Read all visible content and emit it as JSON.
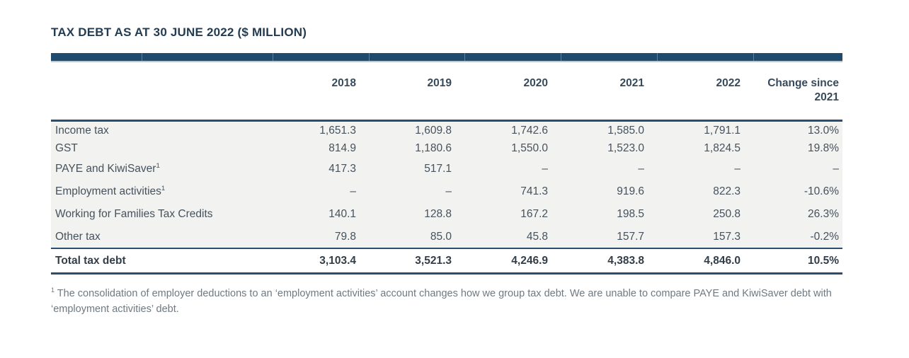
{
  "title": "TAX DEBT AS AT 30 JUNE 2022 ($ MILLION)",
  "table": {
    "columns": [
      "2018",
      "2019",
      "2020",
      "2021",
      "2022",
      "Change since 2021"
    ],
    "rows": [
      {
        "label": "Income tax",
        "sup": "",
        "values": [
          "1,651.3",
          "1,609.8",
          "1,742.6",
          "1,585.0",
          "1,791.1",
          "13.0%"
        ]
      },
      {
        "label": "GST",
        "sup": "",
        "values": [
          "814.9",
          "1,180.6",
          "1,550.0",
          "1,523.0",
          "1,824.5",
          "19.8%"
        ]
      },
      {
        "label": "PAYE and KiwiSaver",
        "sup": "1",
        "values": [
          "417.3",
          "517.1",
          "–",
          "–",
          "–",
          "–"
        ]
      },
      {
        "label": "Employment activities",
        "sup": "1",
        "values": [
          "–",
          "–",
          "741.3",
          "919.6",
          "822.3",
          "-10.6%"
        ]
      },
      {
        "label": "Working for Families Tax Credits",
        "sup": "",
        "values": [
          "140.1",
          "128.8",
          "167.2",
          "198.5",
          "250.8",
          "26.3%"
        ]
      },
      {
        "label": "Other tax",
        "sup": "",
        "values": [
          "79.8",
          "85.0",
          "45.8",
          "157.7",
          "157.3",
          "-0.2%"
        ]
      }
    ],
    "total": {
      "label": "Total tax debt",
      "values": [
        "3,103.4",
        "3,521.3",
        "4,246.9",
        "4,383.8",
        "4,846.0",
        "10.5%"
      ]
    }
  },
  "footnote": {
    "sup": "1",
    "text": "The consolidation of employer deductions to an ‘employment activities’ account changes how we group tax debt. We are unable to compare PAYE and KiwiSaver debt with ‘employment activities’ debt."
  },
  "colors": {
    "header_bar_navy": "#1f4b6e",
    "rule_navy": "#2b4e6e",
    "body_band_gray": "#f2f2f0",
    "title_navy": "#233c52",
    "body_text": "#46525c",
    "footnote_gray": "#6f7981"
  }
}
